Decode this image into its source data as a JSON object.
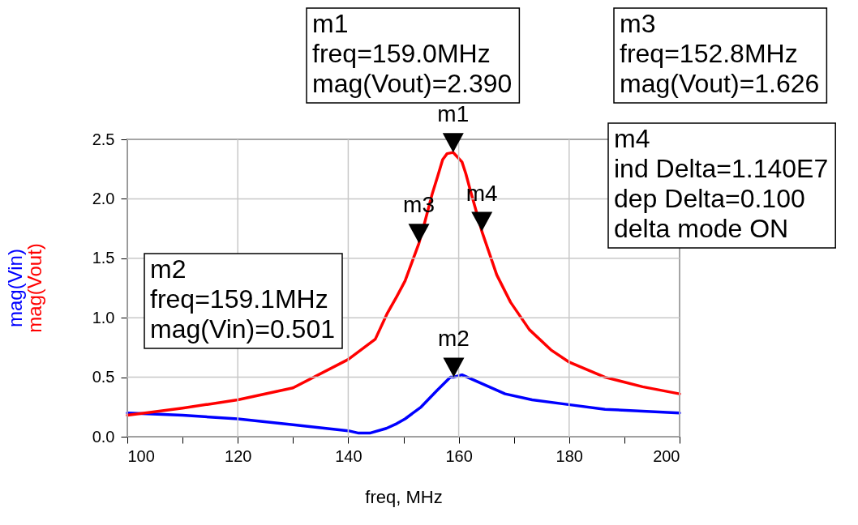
{
  "chart_data": {
    "type": "line",
    "xlabel": "freq, MHz",
    "xlim": [
      100,
      200
    ],
    "xticks": [
      100,
      {
        "value": 110,
        "label": null
      },
      120,
      {
        "value": 130,
        "label": null
      },
      140,
      {
        "value": 150,
        "label": null
      },
      160,
      {
        "value": 170,
        "label": null
      },
      180,
      {
        "value": 190,
        "label": null
      },
      200
    ],
    "ylim": [
      0,
      2.5
    ],
    "yticks": [
      {
        "value": 0,
        "label": "0.0"
      },
      0.5,
      {
        "value": 1,
        "label": "1.0"
      },
      1.5,
      {
        "value": 2,
        "label": "2.0"
      },
      2.5
    ],
    "grid": true,
    "marker": "none",
    "line_style": "solid",
    "series": [
      {
        "name": "mag(Vin)",
        "color": "#0000ff",
        "x": [
          100,
          110,
          120,
          130,
          140,
          141.9,
          143.9,
          146.9,
          148.8,
          150.3,
          153.2,
          156.1,
          158.5,
          159.1,
          160.6,
          163.5,
          168.4,
          173.3,
          179.9,
          186.5,
          200
        ],
        "values": [
          0.2,
          0.18,
          0.15,
          0.1,
          0.05,
          0.03,
          0.03,
          0.07,
          0.11,
          0.15,
          0.25,
          0.39,
          0.5,
          0.501,
          0.52,
          0.46,
          0.36,
          0.31,
          0.27,
          0.23,
          0.2
        ]
      },
      {
        "name": "mag(Vout)",
        "color": "#ff0000",
        "x": [
          100,
          110,
          120,
          130,
          140,
          144.9,
          147.1,
          148.8,
          150.3,
          152.8,
          153.9,
          155.2,
          156.2,
          157.1,
          157.9,
          159.0,
          159.6,
          160.6,
          161.3,
          162.0,
          164.2,
          166.9,
          169.4,
          172.8,
          176.7,
          179.9,
          186.5,
          193.3,
          200
        ],
        "values": [
          0.18,
          0.24,
          0.31,
          0.41,
          0.65,
          0.82,
          1.04,
          1.18,
          1.31,
          1.626,
          1.81,
          2.04,
          2.19,
          2.33,
          2.38,
          2.39,
          2.36,
          2.31,
          2.21,
          2.09,
          1.726,
          1.36,
          1.13,
          0.9,
          0.73,
          0.63,
          0.5,
          0.42,
          0.36
        ]
      }
    ],
    "annotations": [
      "m1\nfreq=159.0MHz\nmag(Vout)=2.390",
      "m2\nfreq=159.1MHz\nmag(Vin)=0.501",
      "m3\nfreq=152.8MHz\nmag(Vout)=1.626",
      "m4\nind Delta=1.140E7\ndep Delta=0.100\ndelta mode ON",
      {
        "text": "m1",
        "x": 159.0,
        "y": 2.39
      },
      {
        "text": "m2",
        "x": 159.1,
        "y": 0.501
      },
      {
        "text": "m3",
        "x": 152.8,
        "y": 1.626
      },
      {
        "text": "m4",
        "x": 164.2,
        "y": 1.726
      }
    ]
  }
}
